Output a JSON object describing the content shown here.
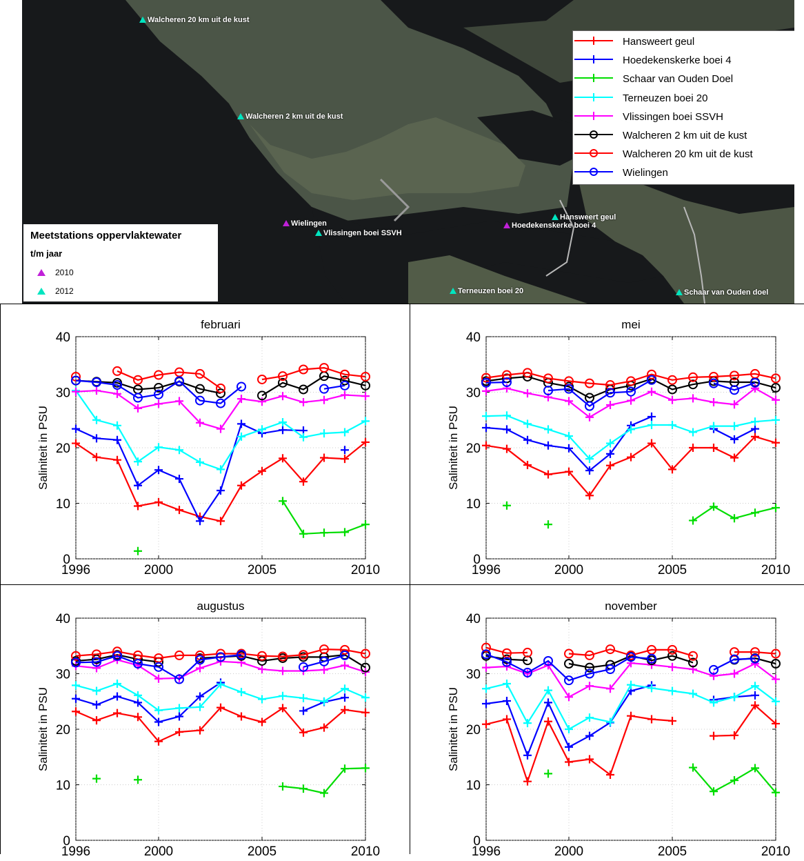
{
  "map": {
    "stations": [
      {
        "name": "Walcheren 20 km uit de kust",
        "year": "2012"
      },
      {
        "name": "Walcheren 2 km uit de kust",
        "year": "2012"
      },
      {
        "name": "Wielingen",
        "year": "2010"
      },
      {
        "name": "Vlissingen boei SSVH",
        "year": "2012"
      },
      {
        "name": "Hansweert geul",
        "year": "2012"
      },
      {
        "name": "Hoedekenskerke boei 4",
        "year": "2010"
      },
      {
        "name": "Terneuzen boei 20",
        "year": "2012"
      },
      {
        "name": "Schaar van Ouden doel",
        "year": "2012"
      }
    ],
    "legend_title": "Meetstations oppervlaktewater",
    "legend_subtitle": "t/m jaar",
    "legend_items": [
      {
        "label": "2010",
        "color": "#c020d8"
      },
      {
        "label": "2012",
        "color": "#00e5c0"
      }
    ]
  },
  "series_legend": [
    {
      "name": "Hansweert geul",
      "color": "#ff0000",
      "marker": "plus"
    },
    {
      "name": "Hoedekenskerke boei 4",
      "color": "#0000ff",
      "marker": "plus"
    },
    {
      "name": "Schaar van Ouden Doel",
      "color": "#00dd00",
      "marker": "plus"
    },
    {
      "name": "Terneuzen boei 20",
      "color": "#00ffff",
      "marker": "plus"
    },
    {
      "name": "Vlissingen boei SSVH",
      "color": "#ff00ff",
      "marker": "plus"
    },
    {
      "name": "Walcheren 2 km uit de kust",
      "color": "#000000",
      "marker": "circle"
    },
    {
      "name": "Walcheren 20 km uit de kust",
      "color": "#ff0000",
      "marker": "circle"
    },
    {
      "name": "Wielingen",
      "color": "#0000ff",
      "marker": "circle"
    }
  ],
  "chart_data": [
    {
      "type": "line",
      "title": "februari",
      "xlabel": "",
      "ylabel": "Saliniteit in PSU",
      "x": [
        1996,
        1997,
        1998,
        1999,
        2000,
        2001,
        2002,
        2003,
        2004,
        2005,
        2006,
        2007,
        2008,
        2009,
        2010
      ],
      "xticks": [
        1996,
        2000,
        2005,
        2010
      ],
      "yticks": [
        0,
        10,
        20,
        30,
        40
      ],
      "xlim": [
        1996,
        2010
      ],
      "ylim": [
        0,
        40
      ],
      "grid": true,
      "series": [
        {
          "name": "Hansweert geul",
          "values": [
            20.8,
            18.3,
            17.8,
            9.5,
            10.2,
            8.8,
            7.6,
            6.8,
            13.2,
            15.8,
            18.1,
            13.9,
            18.2,
            18.0,
            21.0
          ]
        },
        {
          "name": "Hoedekenskerke boei 4",
          "values": [
            23.4,
            21.7,
            21.4,
            13.2,
            16.0,
            14.4,
            6.8,
            12.3,
            24.3,
            22.6,
            23.2,
            23.1,
            null,
            19.6,
            null
          ]
        },
        {
          "name": "Schaar van Ouden Doel",
          "values": [
            null,
            null,
            null,
            1.4,
            null,
            null,
            null,
            null,
            null,
            null,
            10.4,
            4.5,
            4.7,
            4.8,
            6.2
          ]
        },
        {
          "name": "Terneuzen boei 20",
          "values": [
            30.3,
            25.0,
            24.0,
            17.5,
            20.1,
            19.6,
            17.4,
            16.1,
            22.0,
            23.3,
            24.6,
            21.9,
            22.6,
            22.8,
            24.8
          ]
        },
        {
          "name": "Vlissingen boei SSVH",
          "values": [
            30.1,
            30.3,
            29.7,
            27.1,
            27.9,
            28.4,
            24.5,
            23.4,
            28.8,
            28.3,
            29.3,
            28.2,
            28.6,
            29.5,
            29.3
          ]
        },
        {
          "name": "Walcheren 2 km uit de kust",
          "values": [
            32.1,
            31.9,
            31.7,
            30.5,
            30.8,
            31.9,
            30.6,
            29.8,
            null,
            29.4,
            31.7,
            30.5,
            32.9,
            32.1,
            31.2
          ]
        },
        {
          "name": "Walcheren 20 km uit de kust",
          "values": [
            32.8,
            null,
            33.8,
            32.2,
            33.1,
            33.6,
            33.3,
            30.7,
            null,
            32.3,
            32.9,
            34.1,
            34.4,
            33.2,
            32.8
          ]
        },
        {
          "name": "Wielingen",
          "values": [
            32.1,
            31.8,
            31.3,
            29.0,
            29.6,
            32.0,
            28.5,
            28.0,
            31.0,
            null,
            null,
            null,
            30.6,
            31.2,
            null
          ]
        }
      ]
    },
    {
      "type": "line",
      "title": "mei",
      "xlabel": "",
      "ylabel": "Saliniteit in PSU",
      "x": [
        1996,
        1997,
        1998,
        1999,
        2000,
        2001,
        2002,
        2003,
        2004,
        2005,
        2006,
        2007,
        2008,
        2009,
        2010
      ],
      "xticks": [
        1996,
        2000,
        2005,
        2010
      ],
      "yticks": [
        0,
        10,
        20,
        30,
        40
      ],
      "xlim": [
        1996,
        2010
      ],
      "ylim": [
        0,
        40
      ],
      "grid": true,
      "series": [
        {
          "name": "Hansweert geul",
          "values": [
            20.4,
            19.8,
            16.9,
            15.2,
            15.7,
            11.4,
            16.8,
            18.3,
            20.8,
            16.1,
            20.0,
            20.0,
            18.2,
            22.0,
            20.9
          ]
        },
        {
          "name": "Hoedekenskerke boei 4",
          "values": [
            23.6,
            23.3,
            21.4,
            20.4,
            19.9,
            15.9,
            18.9,
            24.0,
            25.6,
            null,
            null,
            23.4,
            21.5,
            23.4,
            null
          ]
        },
        {
          "name": "Schaar van Ouden Doel",
          "values": [
            null,
            9.6,
            null,
            6.2,
            null,
            null,
            null,
            null,
            null,
            null,
            6.9,
            9.4,
            7.3,
            8.3,
            9.2
          ]
        },
        {
          "name": "Terneuzen boei 20",
          "values": [
            25.7,
            25.8,
            24.3,
            23.3,
            22.1,
            18.0,
            20.8,
            23.3,
            24.1,
            24.1,
            22.8,
            23.9,
            23.9,
            24.7,
            25.0
          ]
        },
        {
          "name": "Vlissingen boei SSVH",
          "values": [
            30.2,
            30.7,
            29.8,
            29.1,
            28.4,
            25.5,
            27.7,
            28.5,
            30.1,
            28.6,
            28.9,
            28.2,
            27.8,
            30.7,
            28.6
          ]
        },
        {
          "name": "Walcheren 2 km uit de kust",
          "values": [
            32.0,
            32.5,
            32.8,
            31.7,
            31.0,
            29.0,
            30.5,
            31.2,
            32.4,
            30.5,
            31.4,
            32.0,
            31.8,
            31.8,
            30.8
          ]
        },
        {
          "name": "Walcheren 20 km uit de kust",
          "values": [
            32.6,
            33.1,
            33.5,
            32.5,
            32.0,
            31.6,
            31.3,
            32.0,
            33.2,
            32.2,
            32.7,
            32.8,
            33.0,
            33.3,
            32.5
          ]
        },
        {
          "name": "Wielingen",
          "values": [
            31.7,
            31.8,
            null,
            30.3,
            30.6,
            27.5,
            29.9,
            30.1,
            32.2,
            null,
            null,
            31.6,
            30.4,
            31.7,
            null
          ]
        }
      ]
    },
    {
      "type": "line",
      "title": "augustus",
      "xlabel": "",
      "ylabel": "Saliniteit in PSU",
      "x": [
        1996,
        1997,
        1998,
        1999,
        2000,
        2001,
        2002,
        2003,
        2004,
        2005,
        2006,
        2007,
        2008,
        2009,
        2010
      ],
      "xticks": [
        1996,
        2000,
        2005,
        2010
      ],
      "yticks": [
        0,
        10,
        20,
        30,
        40
      ],
      "xlim": [
        1996,
        2010
      ],
      "ylim": [
        0,
        40
      ],
      "grid": true,
      "series": [
        {
          "name": "Hansweert geul",
          "values": [
            23.2,
            21.6,
            22.9,
            22.2,
            17.8,
            19.5,
            19.8,
            23.9,
            22.3,
            21.3,
            23.8,
            19.4,
            20.3,
            23.5,
            23.0
          ]
        },
        {
          "name": "Hoedekenskerke boei 4",
          "values": [
            25.5,
            24.4,
            25.9,
            24.8,
            21.3,
            22.3,
            25.9,
            28.4,
            null,
            null,
            null,
            23.3,
            24.9,
            25.7,
            null
          ]
        },
        {
          "name": "Schaar van Ouden Doel",
          "values": [
            null,
            11.1,
            null,
            10.9,
            null,
            null,
            null,
            null,
            null,
            null,
            9.7,
            9.3,
            8.5,
            12.9,
            13.0
          ]
        },
        {
          "name": "Terneuzen boei 20",
          "values": [
            27.9,
            26.9,
            28.2,
            26.1,
            23.4,
            23.8,
            24.0,
            28.1,
            26.7,
            25.4,
            26.0,
            25.6,
            25.0,
            27.3,
            25.7
          ]
        },
        {
          "name": "Vlissingen boei SSVH",
          "values": [
            31.4,
            31.0,
            32.5,
            31.5,
            29.1,
            29.2,
            31.0,
            32.2,
            32.0,
            30.8,
            30.5,
            30.5,
            30.7,
            31.5,
            30.3
          ]
        },
        {
          "name": "Walcheren 2 km uit de kust",
          "values": [
            32.3,
            32.6,
            33.4,
            32.6,
            32.1,
            null,
            32.8,
            33.0,
            33.2,
            32.3,
            32.8,
            33.0,
            33.0,
            33.4,
            31.1
          ]
        },
        {
          "name": "Walcheren 20 km uit de kust",
          "values": [
            33.2,
            33.5,
            34.0,
            33.3,
            32.8,
            33.3,
            33.3,
            33.6,
            33.6,
            33.2,
            33.1,
            33.4,
            34.4,
            34.3,
            33.6
          ]
        },
        {
          "name": "Wielingen",
          "values": [
            32.0,
            32.1,
            33.2,
            31.8,
            31.2,
            29.0,
            32.5,
            33.0,
            33.4,
            null,
            null,
            31.2,
            32.2,
            33.3,
            null
          ]
        }
      ]
    },
    {
      "type": "line",
      "title": "november",
      "xlabel": "",
      "ylabel": "Saliniteit in PSU",
      "x": [
        1996,
        1997,
        1998,
        1999,
        2000,
        2001,
        2002,
        2003,
        2004,
        2005,
        2006,
        2007,
        2008,
        2009,
        2010
      ],
      "xticks": [
        1996,
        2000,
        2005,
        2010
      ],
      "yticks": [
        0,
        10,
        20,
        30,
        40
      ],
      "xlim": [
        1996,
        2010
      ],
      "ylim": [
        0,
        40
      ],
      "grid": true,
      "series": [
        {
          "name": "Hansweert geul",
          "values": [
            20.9,
            21.8,
            10.6,
            21.4,
            14.1,
            14.6,
            11.8,
            22.4,
            21.8,
            21.5,
            null,
            18.8,
            18.9,
            24.3,
            21.0
          ]
        },
        {
          "name": "Hoedekenskerke boei 4",
          "values": [
            24.6,
            25.1,
            15.3,
            24.8,
            16.8,
            18.8,
            21.2,
            26.9,
            27.9,
            null,
            null,
            25.3,
            25.8,
            26.1,
            null
          ]
        },
        {
          "name": "Schaar van Ouden Doel",
          "values": [
            null,
            null,
            null,
            12.0,
            null,
            null,
            null,
            null,
            null,
            null,
            13.1,
            8.8,
            10.8,
            13.0,
            8.6
          ]
        },
        {
          "name": "Terneuzen boei 20",
          "values": [
            27.3,
            28.2,
            21.1,
            27.0,
            20.0,
            22.1,
            21.3,
            28.0,
            27.4,
            26.9,
            26.4,
            24.8,
            25.8,
            27.8,
            25.0
          ]
        },
        {
          "name": "Vlissingen boei SSVH",
          "values": [
            31.1,
            31.3,
            30.0,
            31.5,
            25.8,
            27.8,
            27.3,
            31.9,
            31.6,
            31.2,
            30.8,
            29.6,
            30.0,
            31.8,
            29.0
          ]
        },
        {
          "name": "Walcheren 2 km uit de kust",
          "values": [
            33.2,
            32.6,
            32.4,
            null,
            31.8,
            31.1,
            31.6,
            33.2,
            32.4,
            33.2,
            32.0,
            null,
            32.5,
            32.8,
            31.8
          ]
        },
        {
          "name": "Walcheren 20 km uit de kust",
          "values": [
            34.7,
            33.7,
            33.8,
            null,
            33.6,
            33.3,
            34.4,
            33.3,
            34.3,
            34.3,
            33.2,
            null,
            33.9,
            33.9,
            33.6
          ]
        },
        {
          "name": "Wielingen",
          "values": [
            33.5,
            32.1,
            30.2,
            32.3,
            28.8,
            30.0,
            30.8,
            33.0,
            32.7,
            null,
            null,
            30.7,
            32.6,
            32.7,
            null
          ]
        }
      ]
    }
  ]
}
